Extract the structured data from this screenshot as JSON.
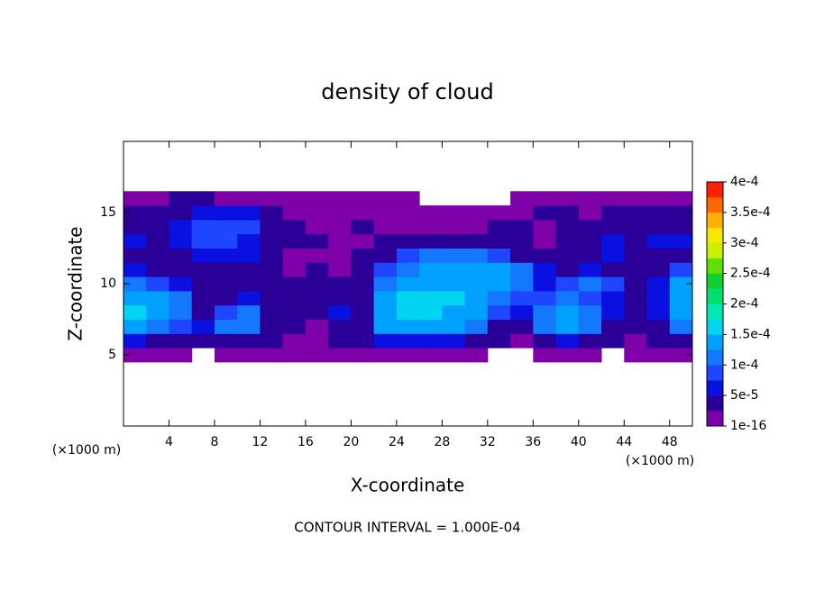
{
  "chart_data": {
    "type": "contour",
    "title": "density of cloud",
    "x_label": "X-coordinate",
    "y_label": "Z-coordinate",
    "x_unit": "(×1000 m)",
    "footer": "CONTOUR INTERVAL = 1.000E-04",
    "x": [
      1,
      3,
      5,
      7,
      9,
      11,
      13,
      15,
      17,
      19,
      21,
      23,
      25,
      27,
      29,
      31,
      33,
      35,
      37,
      39,
      41,
      43,
      45,
      47,
      49
    ],
    "z": [
      5,
      6,
      7,
      8,
      9,
      10,
      11,
      12,
      13,
      14,
      15,
      16
    ],
    "values": [
      [
        1e-05,
        2e-05,
        1e-05,
        null,
        1e-05,
        1e-05,
        2e-05,
        1e-05,
        1e-05,
        1e-05,
        1e-05,
        2e-05,
        2e-05,
        2e-05,
        1e-05,
        1e-05,
        null,
        null,
        1e-05,
        1e-05,
        1e-05,
        null,
        1e-05,
        1e-05,
        1e-05
      ],
      [
        6e-05,
        5e-05,
        4e-05,
        3e-05,
        5e-05,
        4e-05,
        3e-05,
        2e-05,
        2e-05,
        3e-05,
        3e-05,
        6e-05,
        7e-05,
        7e-05,
        6e-05,
        5e-05,
        3e-05,
        2e-05,
        5e-05,
        6e-05,
        5e-05,
        3e-05,
        2e-05,
        3e-05,
        5e-05
      ],
      [
        0.00013,
        0.00012,
        9e-05,
        6e-05,
        0.00012,
        0.00011,
        5e-05,
        3e-05,
        2e-05,
        5e-05,
        4e-05,
        0.00013,
        0.00014,
        0.00014,
        0.00013,
        0.00011,
        5e-05,
        4e-05,
        0.00012,
        0.00013,
        0.00011,
        5e-05,
        3e-05,
        5e-05,
        0.00012
      ],
      [
        0.00016,
        0.00015,
        0.00012,
        5e-05,
        0.0001,
        0.00011,
        5e-05,
        3e-05,
        3e-05,
        6e-05,
        5e-05,
        0.00015,
        0.00017,
        0.00016,
        0.00015,
        0.00013,
        8e-05,
        6e-05,
        0.00012,
        0.00013,
        0.00012,
        6e-05,
        4e-05,
        6e-05,
        0.00014
      ],
      [
        0.00015,
        0.00015,
        0.00011,
        4e-05,
        5e-05,
        6e-05,
        4e-05,
        3e-05,
        3e-05,
        4e-05,
        4e-05,
        0.00014,
        0.00017,
        0.00017,
        0.00016,
        0.00015,
        0.00012,
        8e-05,
        9e-05,
        0.00011,
        0.0001,
        6e-05,
        4e-05,
        7e-05,
        0.00014
      ],
      [
        0.00012,
        0.0001,
        6e-05,
        3e-05,
        4e-05,
        4e-05,
        3e-05,
        3e-05,
        4e-05,
        3e-05,
        4e-05,
        0.00012,
        0.00015,
        0.00015,
        0.00014,
        0.00013,
        0.00013,
        0.00012,
        7e-05,
        8e-05,
        0.00012,
        9e-05,
        5e-05,
        6e-05,
        0.00013
      ],
      [
        7e-05,
        5e-05,
        3e-05,
        4e-05,
        5e-05,
        4e-05,
        3e-05,
        2e-05,
        3e-05,
        2e-05,
        4e-05,
        9e-05,
        0.00012,
        0.00013,
        0.00014,
        0.00014,
        0.00013,
        0.00011,
        6e-05,
        5e-05,
        6e-05,
        5e-05,
        4e-05,
        5e-05,
        8e-05
      ],
      [
        5e-05,
        4e-05,
        4e-05,
        6e-05,
        7e-05,
        6e-05,
        4e-05,
        2e-05,
        2e-05,
        2e-05,
        3e-05,
        5e-05,
        8e-05,
        0.00011,
        0.00012,
        0.00011,
        9e-05,
        5e-05,
        3e-05,
        4e-05,
        5e-05,
        6e-05,
        5e-05,
        4e-05,
        5e-05
      ],
      [
        6e-05,
        5e-05,
        6e-05,
        8e-05,
        9e-05,
        7e-05,
        5e-05,
        3e-05,
        3e-05,
        2e-05,
        2e-05,
        3e-05,
        4e-05,
        5e-05,
        4e-05,
        3e-05,
        3e-05,
        3e-05,
        2e-05,
        3e-05,
        5e-05,
        6e-05,
        5e-05,
        6e-05,
        6e-05
      ],
      [
        5e-05,
        5e-05,
        6e-05,
        8e-05,
        9e-05,
        8e-05,
        5e-05,
        3e-05,
        2e-05,
        2e-05,
        3e-05,
        2e-05,
        1e-05,
        2e-05,
        2e-05,
        2e-05,
        3e-05,
        3e-05,
        2e-05,
        3e-05,
        4e-05,
        5e-05,
        4e-05,
        5e-05,
        4e-05
      ],
      [
        3e-05,
        4e-05,
        5e-05,
        6e-05,
        7e-05,
        6e-05,
        4e-05,
        2e-05,
        2e-05,
        2e-05,
        1e-05,
        1e-05,
        1e-05,
        1e-05,
        1e-05,
        1e-05,
        1e-05,
        2e-05,
        3e-05,
        3e-05,
        2e-05,
        4e-05,
        3e-05,
        4e-05,
        3e-05
      ],
      [
        2e-05,
        2e-05,
        3e-05,
        3e-05,
        2e-05,
        2e-05,
        1e-05,
        1e-05,
        1e-05,
        1e-05,
        1e-05,
        1e-05,
        1e-05,
        null,
        null,
        null,
        null,
        1e-05,
        1e-05,
        1e-05,
        1e-05,
        1e-05,
        1e-05,
        1e-05,
        1e-05
      ]
    ],
    "xlim": [
      0,
      50
    ],
    "xticks": [
      4,
      8,
      12,
      16,
      20,
      24,
      28,
      32,
      36,
      40,
      44,
      48
    ],
    "ylim": [
      0,
      20
    ],
    "yticks": [
      5,
      10,
      15
    ],
    "clim": [
      1e-16,
      0.0004
    ],
    "cticks": [
      1e-16,
      {
        "value": 5e-05,
        "label": "5e-5"
      },
      {
        "value": 0.0001,
        "label": "1e-4"
      },
      {
        "value": 0.00015,
        "label": "1.5e-4"
      },
      {
        "value": 0.0002,
        "label": "2e-4"
      },
      {
        "value": 0.00025,
        "label": "2.5e-4"
      },
      {
        "value": 0.0003,
        "label": "3e-4"
      },
      {
        "value": 0.00035,
        "label": "3.5e-4"
      },
      {
        "value": 0.0004,
        "label": "4e-4"
      }
    ],
    "colors": [
      "#7d00a8",
      "#2a0098",
      "#0a10e0",
      "#1e46ff",
      "#1478ff",
      "#00a0ff",
      "#00d4f0",
      "#00e8b4",
      "#00e070",
      "#10d030",
      "#60e000",
      "#c8f000",
      "#f8e800",
      "#ffb000",
      "#ff6800",
      "#ff2000"
    ]
  }
}
